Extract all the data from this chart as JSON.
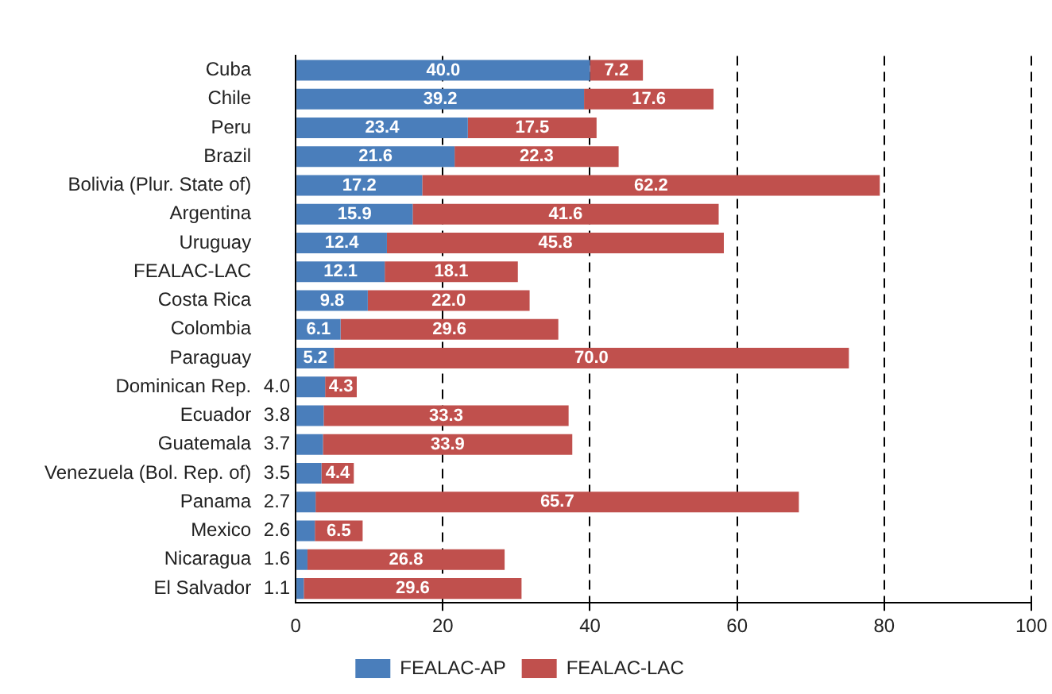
{
  "chart_data": {
    "type": "bar",
    "orientation": "horizontal",
    "stacked": true,
    "categories": [
      "Cuba",
      "Chile",
      "Peru",
      "Brazil",
      "Bolivia (Plur. State of)",
      "Argentina",
      "Uruguay",
      "FEALAC-LAC",
      "Costa Rica",
      "Colombia",
      "Paraguay",
      "Dominican Rep.",
      "Ecuador",
      "Guatemala",
      "Venezuela (Bol. Rep. of)",
      "Panama",
      "Mexico",
      "Nicaragua",
      "El Salvador"
    ],
    "series": [
      {
        "name": "FEALAC-AP",
        "color": "#4a7ebb",
        "values": [
          40.0,
          39.2,
          23.4,
          21.6,
          17.2,
          15.9,
          12.4,
          12.1,
          9.8,
          6.1,
          5.2,
          4.0,
          3.8,
          3.7,
          3.5,
          2.7,
          2.6,
          1.6,
          1.1
        ],
        "value_labels": [
          "40.0",
          "39.2",
          "23.4",
          "21.6",
          "17.2",
          "15.9",
          "12.4",
          "12.1",
          "9.8",
          "6.1",
          "5.2",
          "4.0",
          "3.8",
          "3.7",
          "3.5",
          "2.7",
          "2.6",
          "1.6",
          "1.1"
        ]
      },
      {
        "name": "FEALAC-LAC",
        "color": "#c0504d",
        "values": [
          7.2,
          17.6,
          17.5,
          22.3,
          62.2,
          41.6,
          45.8,
          18.1,
          22.0,
          29.6,
          70.0,
          4.3,
          33.3,
          33.9,
          4.4,
          65.7,
          6.5,
          26.8,
          29.6
        ],
        "value_labels": [
          "7.2",
          "17.6",
          "17.5",
          "22.3",
          "62.2",
          "41.6",
          "45.8",
          "18.1",
          "22.0",
          "29.6",
          "70.0",
          "4.3",
          "33.3",
          "33.9",
          "4.4",
          "65.7",
          "6.5",
          "26.8",
          "29.6"
        ]
      }
    ],
    "xlim": [
      0,
      100
    ],
    "xticks": [
      0,
      20,
      40,
      60,
      80,
      100
    ],
    "grid": "x",
    "legend": "bottom"
  }
}
